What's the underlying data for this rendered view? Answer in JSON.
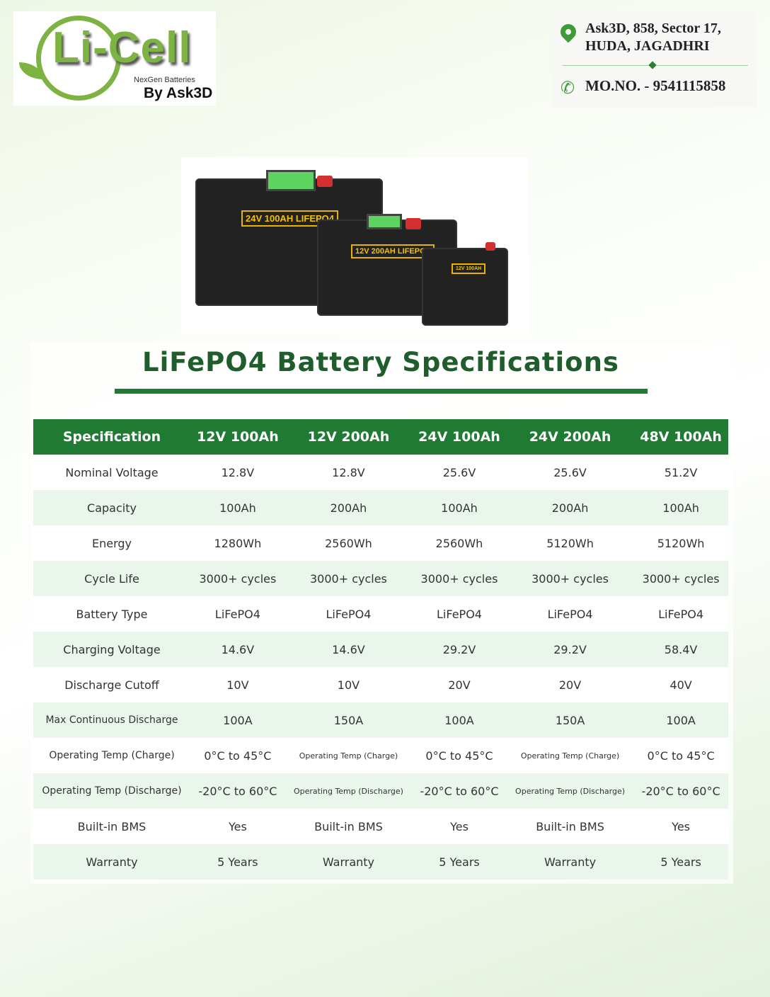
{
  "logo": {
    "brand": "Li-Cell",
    "tagline": "NexGen Batteries",
    "by": "By Ask3D"
  },
  "contact": {
    "address_line1": "Ask3D, 858, Sector 17,",
    "address_line2": "HUDA, JAGADHRI",
    "phone": "MO.NO. - 9541115858",
    "icons": [
      "location-pin-icon",
      "phone-icon"
    ],
    "accent": "#3f9b3a"
  },
  "product_image": {
    "labels": [
      "24V 100AH LIFEPO4",
      "12V 200AH LIFEPO4",
      "12V 100AH"
    ]
  },
  "specs": {
    "title": "LiFePO4 Battery Specifications",
    "header_color": "#1f7a33",
    "columns": [
      "Specification",
      "12V 100Ah",
      "12V 200Ah",
      "24V 100Ah",
      "24V 200Ah",
      "48V 100Ah"
    ],
    "rows": [
      [
        "Nominal Voltage",
        "12.8V",
        "12.8V",
        "25.6V",
        "25.6V",
        "51.2V"
      ],
      [
        "Capacity",
        "100Ah",
        "200Ah",
        "100Ah",
        "200Ah",
        "100Ah"
      ],
      [
        "Energy",
        "1280Wh",
        "2560Wh",
        "2560Wh",
        "5120Wh",
        "5120Wh"
      ],
      [
        "Cycle Life",
        "3000+ cycles",
        "3000+ cycles",
        "3000+ cycles",
        "3000+ cycles",
        "3000+ cycles"
      ],
      [
        "Battery Type",
        "LiFePO4",
        "LiFePO4",
        "LiFePO4",
        "LiFePO4",
        "LiFePO4"
      ],
      [
        "Charging Voltage",
        "14.6V",
        "14.6V",
        "29.2V",
        "29.2V",
        "58.4V"
      ],
      [
        "Discharge Cutoff",
        "10V",
        "10V",
        "20V",
        "20V",
        "40V"
      ],
      [
        "Max Continuous Discharge",
        "100A",
        "150A",
        "100A",
        "150A",
        "100A"
      ],
      [
        "Operating Temp (Charge)",
        "0°C to 45°C",
        "Operating Temp (Charge)",
        "0°C to 45°C",
        "Operating Temp (Charge)",
        "0°C to 45°C"
      ],
      [
        "Operating Temp (Discharge)",
        "-20°C to 60°C",
        "Operating Temp (Discharge)",
        "-20°C to 60°C",
        "Operating Temp (Discharge)",
        "-20°C to 60°C"
      ],
      [
        "Built-in BMS",
        "Yes",
        "Built-in BMS",
        "Yes",
        "Built-in BMS",
        "Yes"
      ],
      [
        "Warranty",
        "5 Years",
        "Warranty",
        "5 Years",
        "Warranty",
        "5 Years"
      ]
    ]
  }
}
